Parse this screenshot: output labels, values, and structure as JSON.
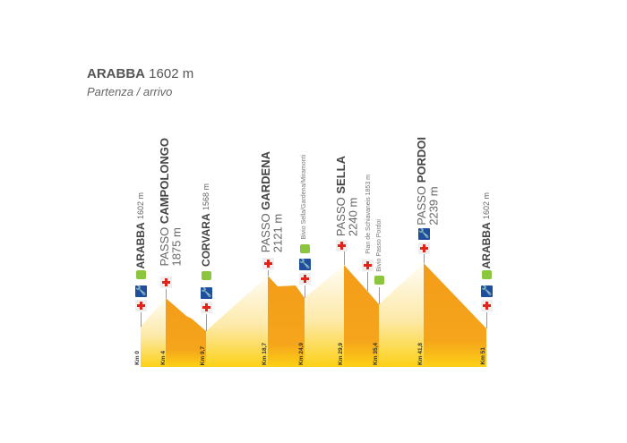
{
  "header": {
    "title_bold": "ARABBA",
    "title_rest": "1602 m",
    "subtitle": "Partenza / arrivo"
  },
  "colors": {
    "descent": "#f39c1a",
    "ascent_top": "#fffaf0",
    "base_yellow": "#fcd116",
    "cross": "#e2231a",
    "wrench_bg": "#1f4f9c",
    "bus": "#8cc63f"
  },
  "stations": [
    {
      "prefix": "",
      "name": "ARABBA",
      "elev": "1602 m",
      "km": "Km 0",
      "icons": [
        "first-aid",
        "repair",
        "bus"
      ]
    },
    {
      "prefix": "PASSO",
      "name": "CAMPOLONGO",
      "elev": "1875 m",
      "km": "Km 4",
      "icons": [
        "first-aid"
      ]
    },
    {
      "prefix": "",
      "name": "CORVARA",
      "elev": "1568 m",
      "km": "Km 9,7",
      "icons": [
        "first-aid",
        "repair",
        "bus"
      ]
    },
    {
      "prefix": "PASSO",
      "name": "GARDENA",
      "elev": "2121 m",
      "km": "Km 18,7",
      "icons": [
        "first-aid"
      ]
    },
    {
      "label": "Bivio Sella/Gardena/Miramonti",
      "km": "Km 24,9",
      "icons": [
        "first-aid",
        "repair",
        "bus"
      ]
    },
    {
      "prefix": "PASSO",
      "name": "SELLA",
      "elev": "2240 m",
      "km": "Km 29,9",
      "icons": [
        "first-aid"
      ]
    },
    {
      "label": "Pian de Schiavaneis 1853 m",
      "icons": [
        "first-aid"
      ]
    },
    {
      "label": "Bivio Passo Pordoi",
      "km": "Km 35,4",
      "icons": [
        "bus"
      ]
    },
    {
      "prefix": "PASSO",
      "name": "PORDOI",
      "elev": "2239 m",
      "km": "Km 41,8",
      "icons": [
        "first-aid",
        "repair"
      ]
    },
    {
      "prefix": "",
      "name": "ARABBA",
      "elev": "1602 m",
      "km": "Km 51",
      "icons": [
        "first-aid",
        "repair",
        "bus"
      ]
    }
  ]
}
